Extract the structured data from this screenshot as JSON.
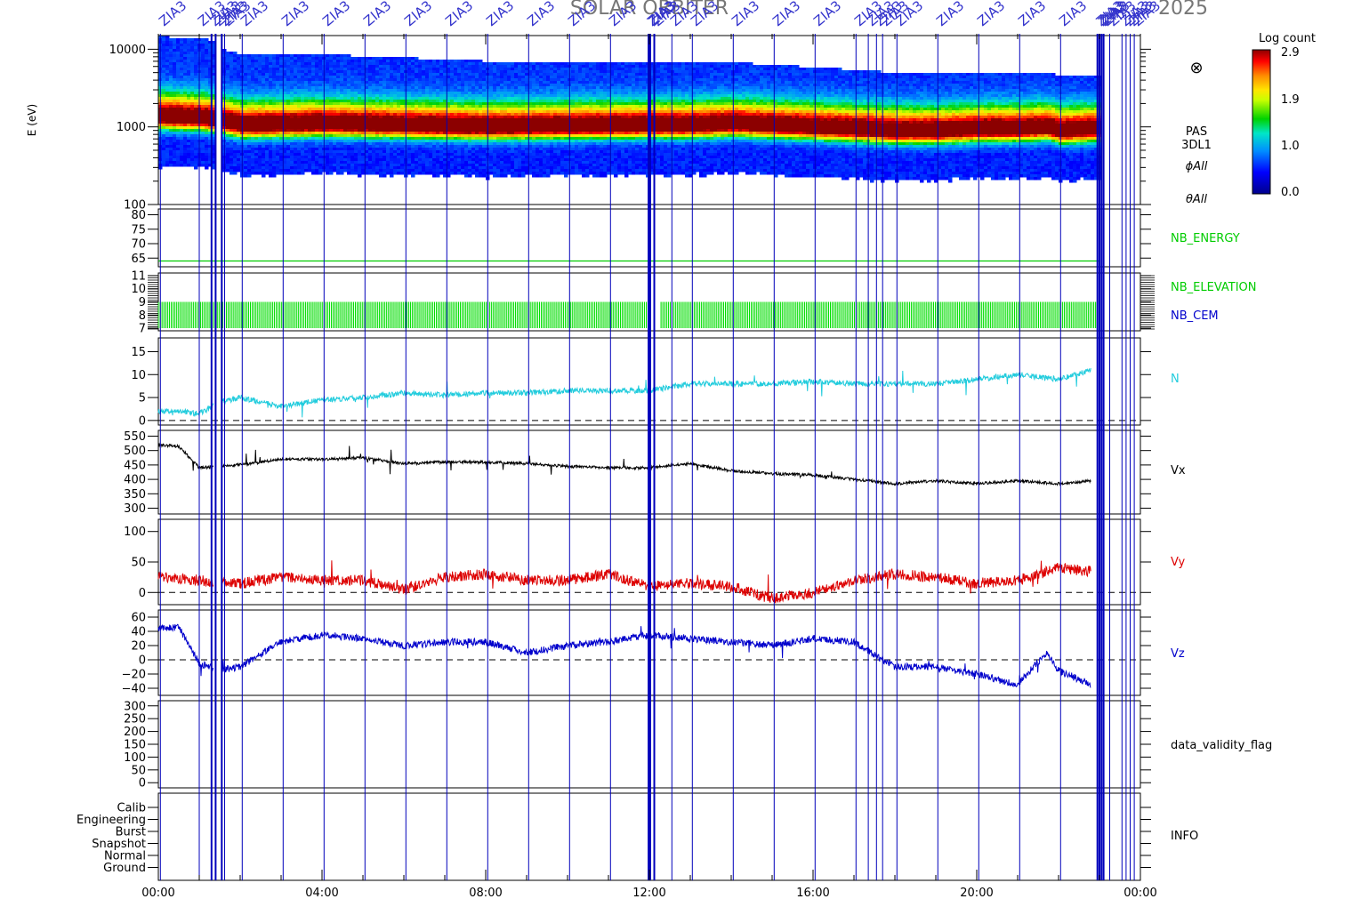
{
  "title": "SOLAR ORBITER",
  "date_label": "2025",
  "event_marker_label": "ZIA3",
  "x_axis": {
    "tick_labels": [
      "00:00",
      "04:00",
      "08:00",
      "12:00",
      "16:00",
      "20:00",
      "00:00"
    ],
    "range_hours": [
      0,
      24
    ]
  },
  "colorbar": {
    "title": "Log count",
    "ticks": [
      "2.9",
      "1.9",
      "1.0",
      "0.0"
    ],
    "range": [
      0.0,
      2.9
    ]
  },
  "spectrogram": {
    "ylabel": "E (eV)",
    "y_ticks": [
      "10000",
      "1000",
      "100"
    ],
    "labels": [
      "PAS",
      "3DL1",
      "ϕAll",
      "θAll"
    ],
    "cross_symbol": "⊗"
  },
  "nb_energy": {
    "label": "NB_ENERGY",
    "y_ticks": [
      "80",
      "75",
      "70",
      "65"
    ],
    "color": "#00cc00"
  },
  "nb_elevation": {
    "labels": [
      "NB_ELEVATION",
      "NB_CEM"
    ],
    "y_ticks": [
      "11",
      "10",
      "9",
      "8",
      "7"
    ],
    "colors": [
      "#00cc00",
      "#0000cc"
    ]
  },
  "density": {
    "label": "N",
    "y_ticks": [
      "15",
      "10",
      "5",
      "0"
    ],
    "color": "#22ccdd"
  },
  "vx": {
    "label": "Vx",
    "y_ticks": [
      "550",
      "500",
      "450",
      "400",
      "350",
      "300"
    ],
    "color": "#000000"
  },
  "vy": {
    "label": "Vy",
    "y_ticks": [
      "100",
      "50",
      "0"
    ],
    "color": "#dd0000"
  },
  "vz": {
    "label": "Vz",
    "y_ticks": [
      "60",
      "40",
      "20",
      "0",
      "−20",
      "−40"
    ],
    "color": "#0000cc"
  },
  "validity": {
    "label": "data_validity_flag",
    "y_ticks": [
      "300",
      "250",
      "200",
      "150",
      "100",
      "50",
      "0"
    ]
  },
  "info": {
    "label": "INFO",
    "modes": [
      "Calib",
      "Engineering",
      "Burst",
      "Snapshot",
      "Normal",
      "Ground"
    ]
  },
  "chart_data": [
    {
      "type": "heatmap",
      "name": "PAS 3DL1 energy spectrogram",
      "ylabel": "E (eV)",
      "y_scale": "log",
      "ylim": [
        100,
        15000
      ],
      "x_range": [
        "00:00",
        "24:00"
      ],
      "peak_energy_eV": {
        "x_hours": [
          0,
          1,
          1.5,
          2,
          4,
          6,
          8,
          10,
          12,
          13,
          14,
          15,
          16,
          17,
          18,
          19,
          20,
          21,
          21.7,
          22,
          22.8
        ],
        "y": [
          1300,
          1250,
          1150,
          1000,
          1050,
          1000,
          950,
          980,
          1000,
          1000,
          1050,
          1000,
          950,
          900,
          850,
          850,
          900,
          900,
          950,
          850,
          900
        ]
      },
      "data_gap_hours": [
        [
          1.35,
          1.55
        ],
        [
          23.0,
          24.0
        ]
      ]
    },
    {
      "type": "line",
      "name": "NB_ENERGY",
      "x_hours": [
        0,
        23
      ],
      "y": [
        64,
        64
      ],
      "ylim": [
        62,
        82
      ]
    },
    {
      "type": "bar",
      "name": "NB_ELEVATION",
      "x_range_hours": [
        0,
        23
      ],
      "y_range": [
        7,
        9
      ],
      "ylim": [
        6.8,
        11.2
      ]
    },
    {
      "type": "line",
      "name": "N",
      "x_hours": [
        0,
        0.5,
        1,
        1.5,
        2,
        3,
        4,
        5,
        6,
        7,
        8,
        9,
        10,
        11,
        12,
        13,
        14,
        15,
        16,
        17,
        18,
        19,
        20,
        21,
        22,
        22.8
      ],
      "y": [
        2,
        2,
        1.5,
        4,
        5,
        3,
        4.5,
        5,
        6,
        5.5,
        6,
        6,
        6.5,
        6.5,
        6.5,
        8,
        8,
        8,
        8.5,
        8,
        8,
        8,
        9,
        10,
        9,
        11
      ],
      "ylim": [
        -1,
        18
      ]
    },
    {
      "type": "line",
      "name": "Vx",
      "x_hours": [
        0,
        0.5,
        1,
        1.5,
        2,
        3,
        4,
        5,
        6,
        7,
        8,
        9,
        10,
        11,
        12,
        13,
        14,
        15,
        16,
        17,
        18,
        19,
        20,
        21,
        22,
        22.8
      ],
      "y": [
        520,
        515,
        440,
        445,
        450,
        470,
        470,
        475,
        455,
        460,
        460,
        455,
        445,
        440,
        440,
        455,
        430,
        420,
        415,
        400,
        385,
        395,
        385,
        395,
        385,
        395
      ],
      "ylim": [
        280,
        570
      ]
    },
    {
      "type": "line",
      "name": "Vy",
      "x_hours": [
        0,
        1,
        2,
        3,
        4,
        5,
        6,
        7,
        8,
        9,
        10,
        11,
        12,
        13,
        14,
        15,
        16,
        17,
        18,
        19,
        20,
        21,
        22,
        22.8
      ],
      "y": [
        25,
        20,
        15,
        25,
        20,
        20,
        5,
        25,
        30,
        20,
        20,
        30,
        10,
        15,
        10,
        -10,
        0,
        20,
        30,
        25,
        15,
        20,
        40,
        35
      ],
      "ylim": [
        -20,
        120
      ]
    },
    {
      "type": "line",
      "name": "Vz",
      "x_hours": [
        0,
        0.5,
        1,
        1.5,
        2,
        3,
        4,
        5,
        6,
        7,
        8,
        9,
        10,
        11,
        12,
        13,
        14,
        15,
        16,
        17,
        18,
        19,
        20,
        21,
        21.7,
        22,
        22.8
      ],
      "y": [
        45,
        45,
        -5,
        -15,
        -10,
        25,
        35,
        30,
        20,
        25,
        25,
        10,
        20,
        25,
        35,
        30,
        25,
        20,
        30,
        25,
        -10,
        -10,
        -20,
        -35,
        10,
        -15,
        -35
      ],
      "ylim": [
        -50,
        70
      ]
    }
  ]
}
